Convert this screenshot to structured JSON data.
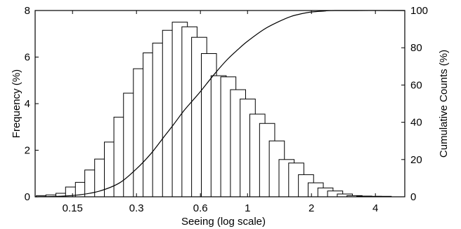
{
  "chart_data": {
    "type": "bar",
    "xlabel": "Seeing (log scale)",
    "ylabel_left": "Frequency (%)",
    "ylabel_right": "Cumulative Counts (%)",
    "x_scale": "log",
    "x_range": [
      0.1,
      5.5
    ],
    "y_left_range": [
      0,
      8
    ],
    "y_right_range": [
      0,
      100
    ],
    "x_ticks": [
      0.15,
      0.3,
      0.6,
      1,
      2,
      4
    ],
    "x_tick_labels": [
      "0.15",
      "0.3",
      "0.6",
      "1",
      "2",
      "4"
    ],
    "y_left_ticks": [
      0,
      2,
      4,
      6,
      8
    ],
    "y_left_tick_labels": [
      "0",
      "2",
      "4",
      "6",
      "8"
    ],
    "y_right_ticks": [
      0,
      20,
      40,
      60,
      80,
      100
    ],
    "y_right_tick_labels": [
      "0",
      "20",
      "40",
      "60",
      "80",
      "100"
    ],
    "grid": false,
    "bar_fill": "#ffffff",
    "bar_stroke": "#000000",
    "series": [
      {
        "kind": "histogram",
        "axis": "left",
        "bins": [
          {
            "x": 0.11,
            "y": 0.05
          },
          {
            "x": 0.122,
            "y": 0.08
          },
          {
            "x": 0.136,
            "y": 0.15
          },
          {
            "x": 0.151,
            "y": 0.42
          },
          {
            "x": 0.168,
            "y": 0.62
          },
          {
            "x": 0.186,
            "y": 1.15
          },
          {
            "x": 0.207,
            "y": 1.62
          },
          {
            "x": 0.23,
            "y": 2.35
          },
          {
            "x": 0.255,
            "y": 3.42
          },
          {
            "x": 0.283,
            "y": 4.45
          },
          {
            "x": 0.315,
            "y": 5.5
          },
          {
            "x": 0.35,
            "y": 6.18
          },
          {
            "x": 0.388,
            "y": 6.6
          },
          {
            "x": 0.432,
            "y": 7.15
          },
          {
            "x": 0.48,
            "y": 7.5
          },
          {
            "x": 0.533,
            "y": 7.3
          },
          {
            "x": 0.592,
            "y": 6.85
          },
          {
            "x": 0.658,
            "y": 6.15
          },
          {
            "x": 0.731,
            "y": 5.2
          },
          {
            "x": 0.812,
            "y": 5.15
          },
          {
            "x": 0.902,
            "y": 4.6
          },
          {
            "x": 1.002,
            "y": 4.2
          },
          {
            "x": 1.113,
            "y": 3.55
          },
          {
            "x": 1.237,
            "y": 3.15
          },
          {
            "x": 1.374,
            "y": 2.4
          },
          {
            "x": 1.527,
            "y": 1.6
          },
          {
            "x": 1.696,
            "y": 1.45
          },
          {
            "x": 1.885,
            "y": 0.95
          },
          {
            "x": 2.094,
            "y": 0.6
          },
          {
            "x": 2.327,
            "y": 0.38
          },
          {
            "x": 2.585,
            "y": 0.25
          },
          {
            "x": 2.872,
            "y": 0.12
          },
          {
            "x": 3.191,
            "y": 0.05
          },
          {
            "x": 3.546,
            "y": 0.03
          },
          {
            "x": 3.94,
            "y": 0.02
          },
          {
            "x": 4.378,
            "y": 0.02
          }
        ]
      },
      {
        "kind": "line",
        "axis": "right",
        "points": [
          {
            "x": 0.1,
            "y": 0
          },
          {
            "x": 0.13,
            "y": 0.3
          },
          {
            "x": 0.16,
            "y": 1.0
          },
          {
            "x": 0.2,
            "y": 3.0
          },
          {
            "x": 0.25,
            "y": 7.5
          },
          {
            "x": 0.3,
            "y": 15.0
          },
          {
            "x": 0.35,
            "y": 23.0
          },
          {
            "x": 0.4,
            "y": 31.5
          },
          {
            "x": 0.45,
            "y": 39.0
          },
          {
            "x": 0.5,
            "y": 46.0
          },
          {
            "x": 0.55,
            "y": 51.5
          },
          {
            "x": 0.6,
            "y": 56.5
          },
          {
            "x": 0.7,
            "y": 66.0
          },
          {
            "x": 0.8,
            "y": 73.5
          },
          {
            "x": 0.9,
            "y": 79.0
          },
          {
            "x": 1.0,
            "y": 83.5
          },
          {
            "x": 1.2,
            "y": 90.0
          },
          {
            "x": 1.4,
            "y": 94.0
          },
          {
            "x": 1.6,
            "y": 96.8
          },
          {
            "x": 1.8,
            "y": 98.3
          },
          {
            "x": 2.0,
            "y": 99.2
          },
          {
            "x": 2.3,
            "y": 99.7
          },
          {
            "x": 2.6,
            "y": 100.0
          },
          {
            "x": 5.5,
            "y": 100.0
          }
        ]
      }
    ]
  }
}
